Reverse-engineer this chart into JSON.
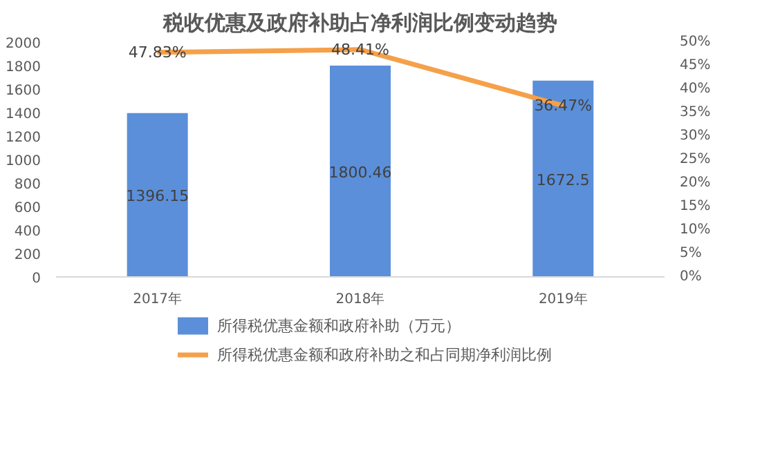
{
  "chart_data": {
    "type": "bar",
    "title": "税收优惠及政府补助占净利润比例变动趋势",
    "categories": [
      "2017年",
      "2018年",
      "2019年"
    ],
    "series": [
      {
        "name": "所得税优惠金额和政府补助（万元）",
        "color": "#5b8fd9",
        "values": [
          1396.15,
          1800.46,
          1672.5
        ]
      },
      {
        "name": "所得税优惠金额和政府补助之和占同期净利润比例",
        "color": "#f5a04a",
        "type": "line",
        "axis": "y2",
        "values": [
          47.83,
          48.41,
          36.47
        ],
        "value_labels": [
          "47.83%",
          "48.41%",
          "36.47%"
        ]
      }
    ],
    "data_labels": true,
    "ylim": [
      0,
      2000
    ],
    "yticks": [
      0,
      200,
      400,
      600,
      800,
      1000,
      1200,
      1400,
      1600,
      1800,
      2000
    ],
    "y2lim": [
      0,
      50
    ],
    "y2ticks": [
      {
        "value": 0,
        "label": "0%"
      },
      {
        "value": 5,
        "label": "5%"
      },
      {
        "value": 10,
        "label": "10%"
      },
      {
        "value": 15,
        "label": "15%"
      },
      {
        "value": 20,
        "label": "20%"
      },
      {
        "value": 25,
        "label": "25%"
      },
      {
        "value": 30,
        "label": "30%"
      },
      {
        "value": 35,
        "label": "35%"
      },
      {
        "value": 40,
        "label": "40%"
      },
      {
        "value": 45,
        "label": "45%"
      },
      {
        "value": 50,
        "label": "50%"
      }
    ],
    "grid": false,
    "legend": "bottom",
    "marker": "none",
    "line_style": "solid"
  }
}
